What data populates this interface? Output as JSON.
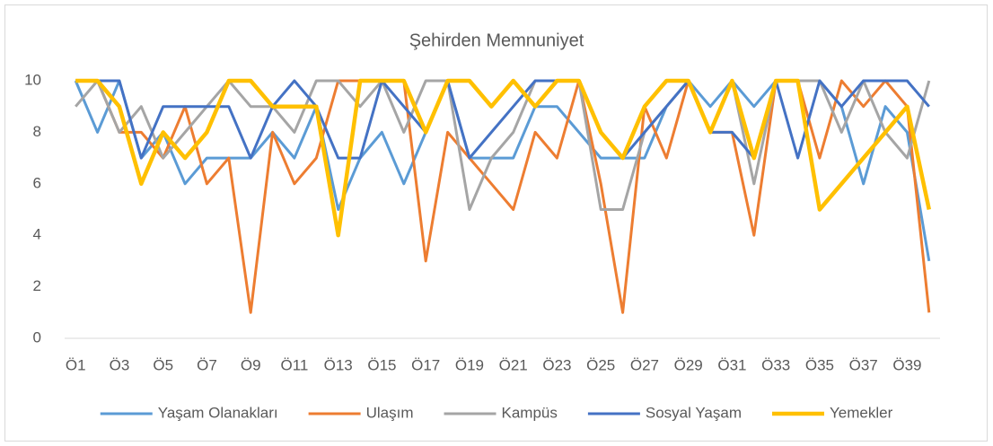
{
  "chart_data": {
    "type": "line",
    "title": "Şehirden Memnuniyet",
    "categories": [
      "Ö1",
      null,
      "Ö3",
      null,
      "Ö5",
      null,
      "Ö7",
      null,
      "Ö9",
      null,
      "Ö11",
      null,
      "Ö13",
      null,
      "Ö15",
      null,
      "Ö17",
      null,
      "Ö19",
      null,
      "Ö21",
      null,
      "Ö23",
      null,
      "Ö25",
      null,
      "Ö27",
      null,
      "Ö29",
      null,
      "Ö31",
      null,
      "Ö33",
      null,
      "Ö35",
      null,
      "Ö37",
      null,
      "Ö39",
      null
    ],
    "series": [
      {
        "name": "Yaşam Olanakları",
        "color": "#5b9bd5",
        "values": [
          10,
          8,
          10,
          7,
          8,
          6,
          7,
          7,
          7,
          8,
          7,
          9,
          5,
          7,
          8,
          6,
          8,
          10,
          7,
          7,
          7,
          9,
          9,
          8,
          7,
          7,
          7,
          9,
          10,
          9,
          10,
          9,
          10,
          10,
          10,
          9,
          6,
          9,
          8,
          3
        ]
      },
      {
        "name": "Ulaşım",
        "color": "#ed7d31",
        "values": [
          10,
          10,
          8,
          8,
          7,
          9,
          6,
          7,
          1,
          8,
          6,
          7,
          10,
          10,
          10,
          10,
          3,
          8,
          7,
          6,
          5,
          8,
          7,
          10,
          6,
          1,
          9,
          7,
          10,
          8,
          8,
          4,
          10,
          10,
          7,
          10,
          9,
          10,
          9,
          1
        ]
      },
      {
        "name": "Kampüs",
        "color": "#a5a5a5",
        "values": [
          9,
          10,
          8,
          9,
          7,
          8,
          9,
          10,
          9,
          9,
          8,
          10,
          10,
          9,
          10,
          8,
          10,
          10,
          5,
          7,
          8,
          10,
          10,
          10,
          5,
          5,
          8,
          9,
          10,
          8,
          10,
          6,
          10,
          10,
          10,
          8,
          10,
          8,
          7,
          10
        ]
      },
      {
        "name": "Sosyal Yaşam",
        "color": "#4472c4",
        "values": [
          10,
          10,
          10,
          7,
          9,
          9,
          9,
          9,
          7,
          9,
          10,
          9,
          7,
          7,
          10,
          9,
          8,
          10,
          7,
          8,
          9,
          10,
          10,
          10,
          8,
          7,
          8,
          9,
          10,
          8,
          8,
          7,
          10,
          7,
          10,
          9,
          10,
          10,
          10,
          9
        ]
      },
      {
        "name": "Yemekler",
        "color": "#ffc000",
        "values": [
          10,
          10,
          9,
          6,
          8,
          7,
          8,
          10,
          10,
          9,
          9,
          9,
          4,
          10,
          10,
          10,
          8,
          10,
          10,
          9,
          10,
          9,
          10,
          10,
          8,
          7,
          9,
          10,
          10,
          8,
          10,
          7,
          10,
          10,
          5,
          6,
          7,
          8,
          9,
          5
        ]
      }
    ],
    "ylim": [
      0,
      10
    ],
    "yticks": [
      0,
      2,
      4,
      6,
      8,
      10
    ],
    "grid": false,
    "legend": "bottom"
  }
}
